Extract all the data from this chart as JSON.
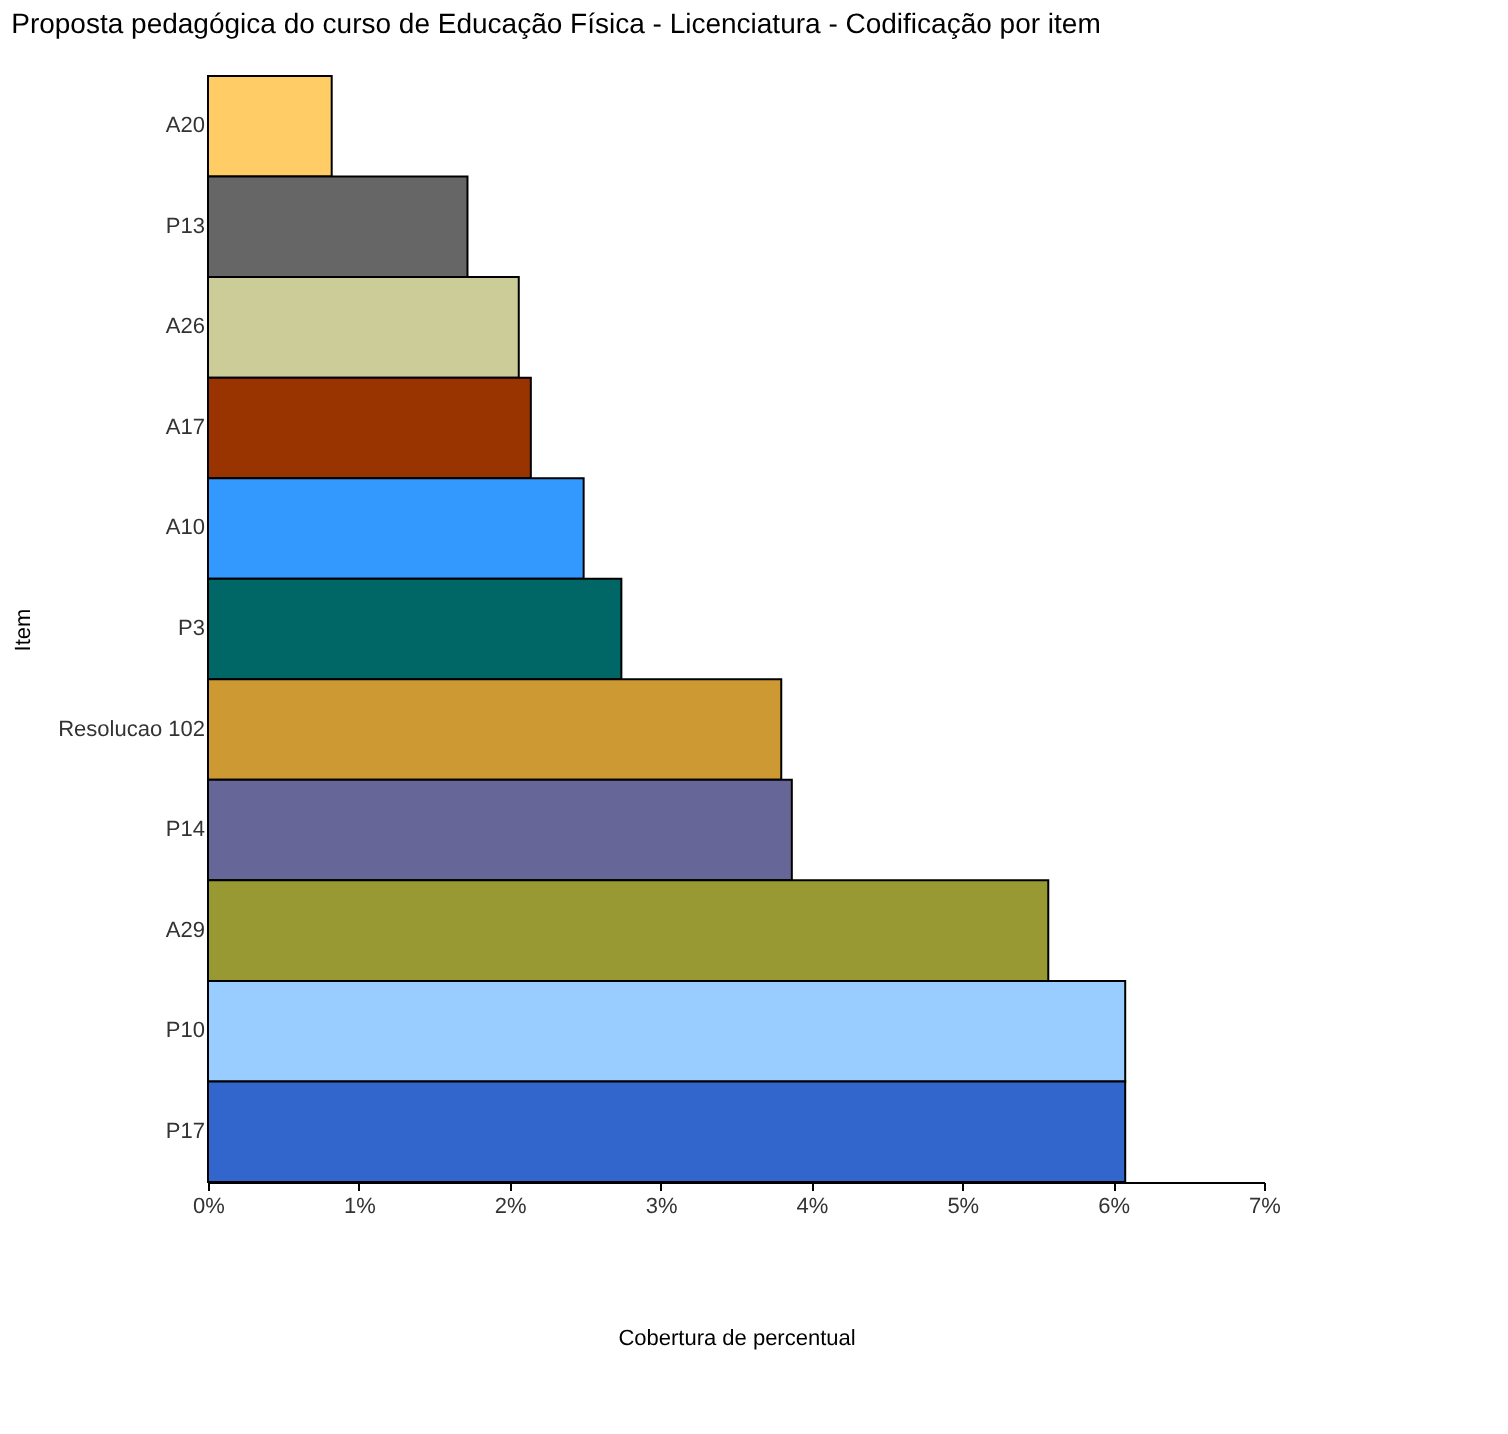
{
  "chart_data": {
    "type": "bar",
    "orientation": "horizontal",
    "title": "Proposta pedagógica do curso de Educação Física - Licenciatura - Codificação por item",
    "xlabel": "Cobertura de percentual",
    "ylabel": "Item",
    "categories": [
      "A20",
      "P13",
      "A26",
      "A17",
      "A10",
      "P3",
      "Resolucao 102",
      "P14",
      "A29",
      "P10",
      "P17"
    ],
    "values": [
      0.82,
      1.72,
      2.06,
      2.14,
      2.49,
      2.74,
      3.8,
      3.87,
      5.57,
      6.08,
      6.08
    ],
    "colors": [
      "#ffcc66",
      "#666666",
      "#cccc99",
      "#993300",
      "#3399ff",
      "#006666",
      "#cc9933",
      "#666699",
      "#999933",
      "#99ccff",
      "#3366cc"
    ],
    "xlim": [
      0,
      7
    ],
    "xticks": [
      {
        "value": 0,
        "label": "0%"
      },
      {
        "value": 1,
        "label": "1%"
      },
      {
        "value": 2,
        "label": "2%"
      },
      {
        "value": 3,
        "label": "3%"
      },
      {
        "value": 4,
        "label": "4%"
      },
      {
        "value": 5,
        "label": "5%"
      },
      {
        "value": 6,
        "label": "6%"
      },
      {
        "value": 7,
        "label": "7%"
      }
    ],
    "grid": false,
    "legend": false
  }
}
